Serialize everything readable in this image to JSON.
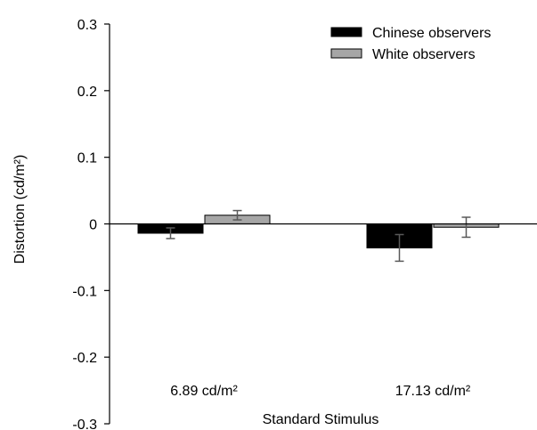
{
  "colors": {
    "series_0": "#000000",
    "series_1": "#a6a6a6",
    "axis": "#000000",
    "error_bar": "#595959"
  },
  "chart_data": {
    "type": "bar",
    "xlabel": "Standard Stimulus",
    "ylabel": "Distortion (cd/m²)",
    "ylim": [
      -0.3,
      0.3
    ],
    "yticks": [
      "0.3",
      "0.2",
      "0.1",
      "0",
      "-0.1",
      "-0.2",
      "-0.3"
    ],
    "yticks_values": [
      0.3,
      0.2,
      0.1,
      0,
      -0.1,
      -0.2,
      -0.3
    ],
    "categories": [
      "6.89 cd/m²",
      "17.13 cd/m²"
    ],
    "grid": false,
    "legend_position": "top-right",
    "series": [
      {
        "name": "Chinese observers",
        "values": [
          -0.014,
          -0.036
        ],
        "errors": [
          0.008,
          0.02
        ]
      },
      {
        "name": "White observers",
        "values": [
          0.013,
          -0.005
        ],
        "errors": [
          0.007,
          0.015
        ]
      }
    ]
  }
}
